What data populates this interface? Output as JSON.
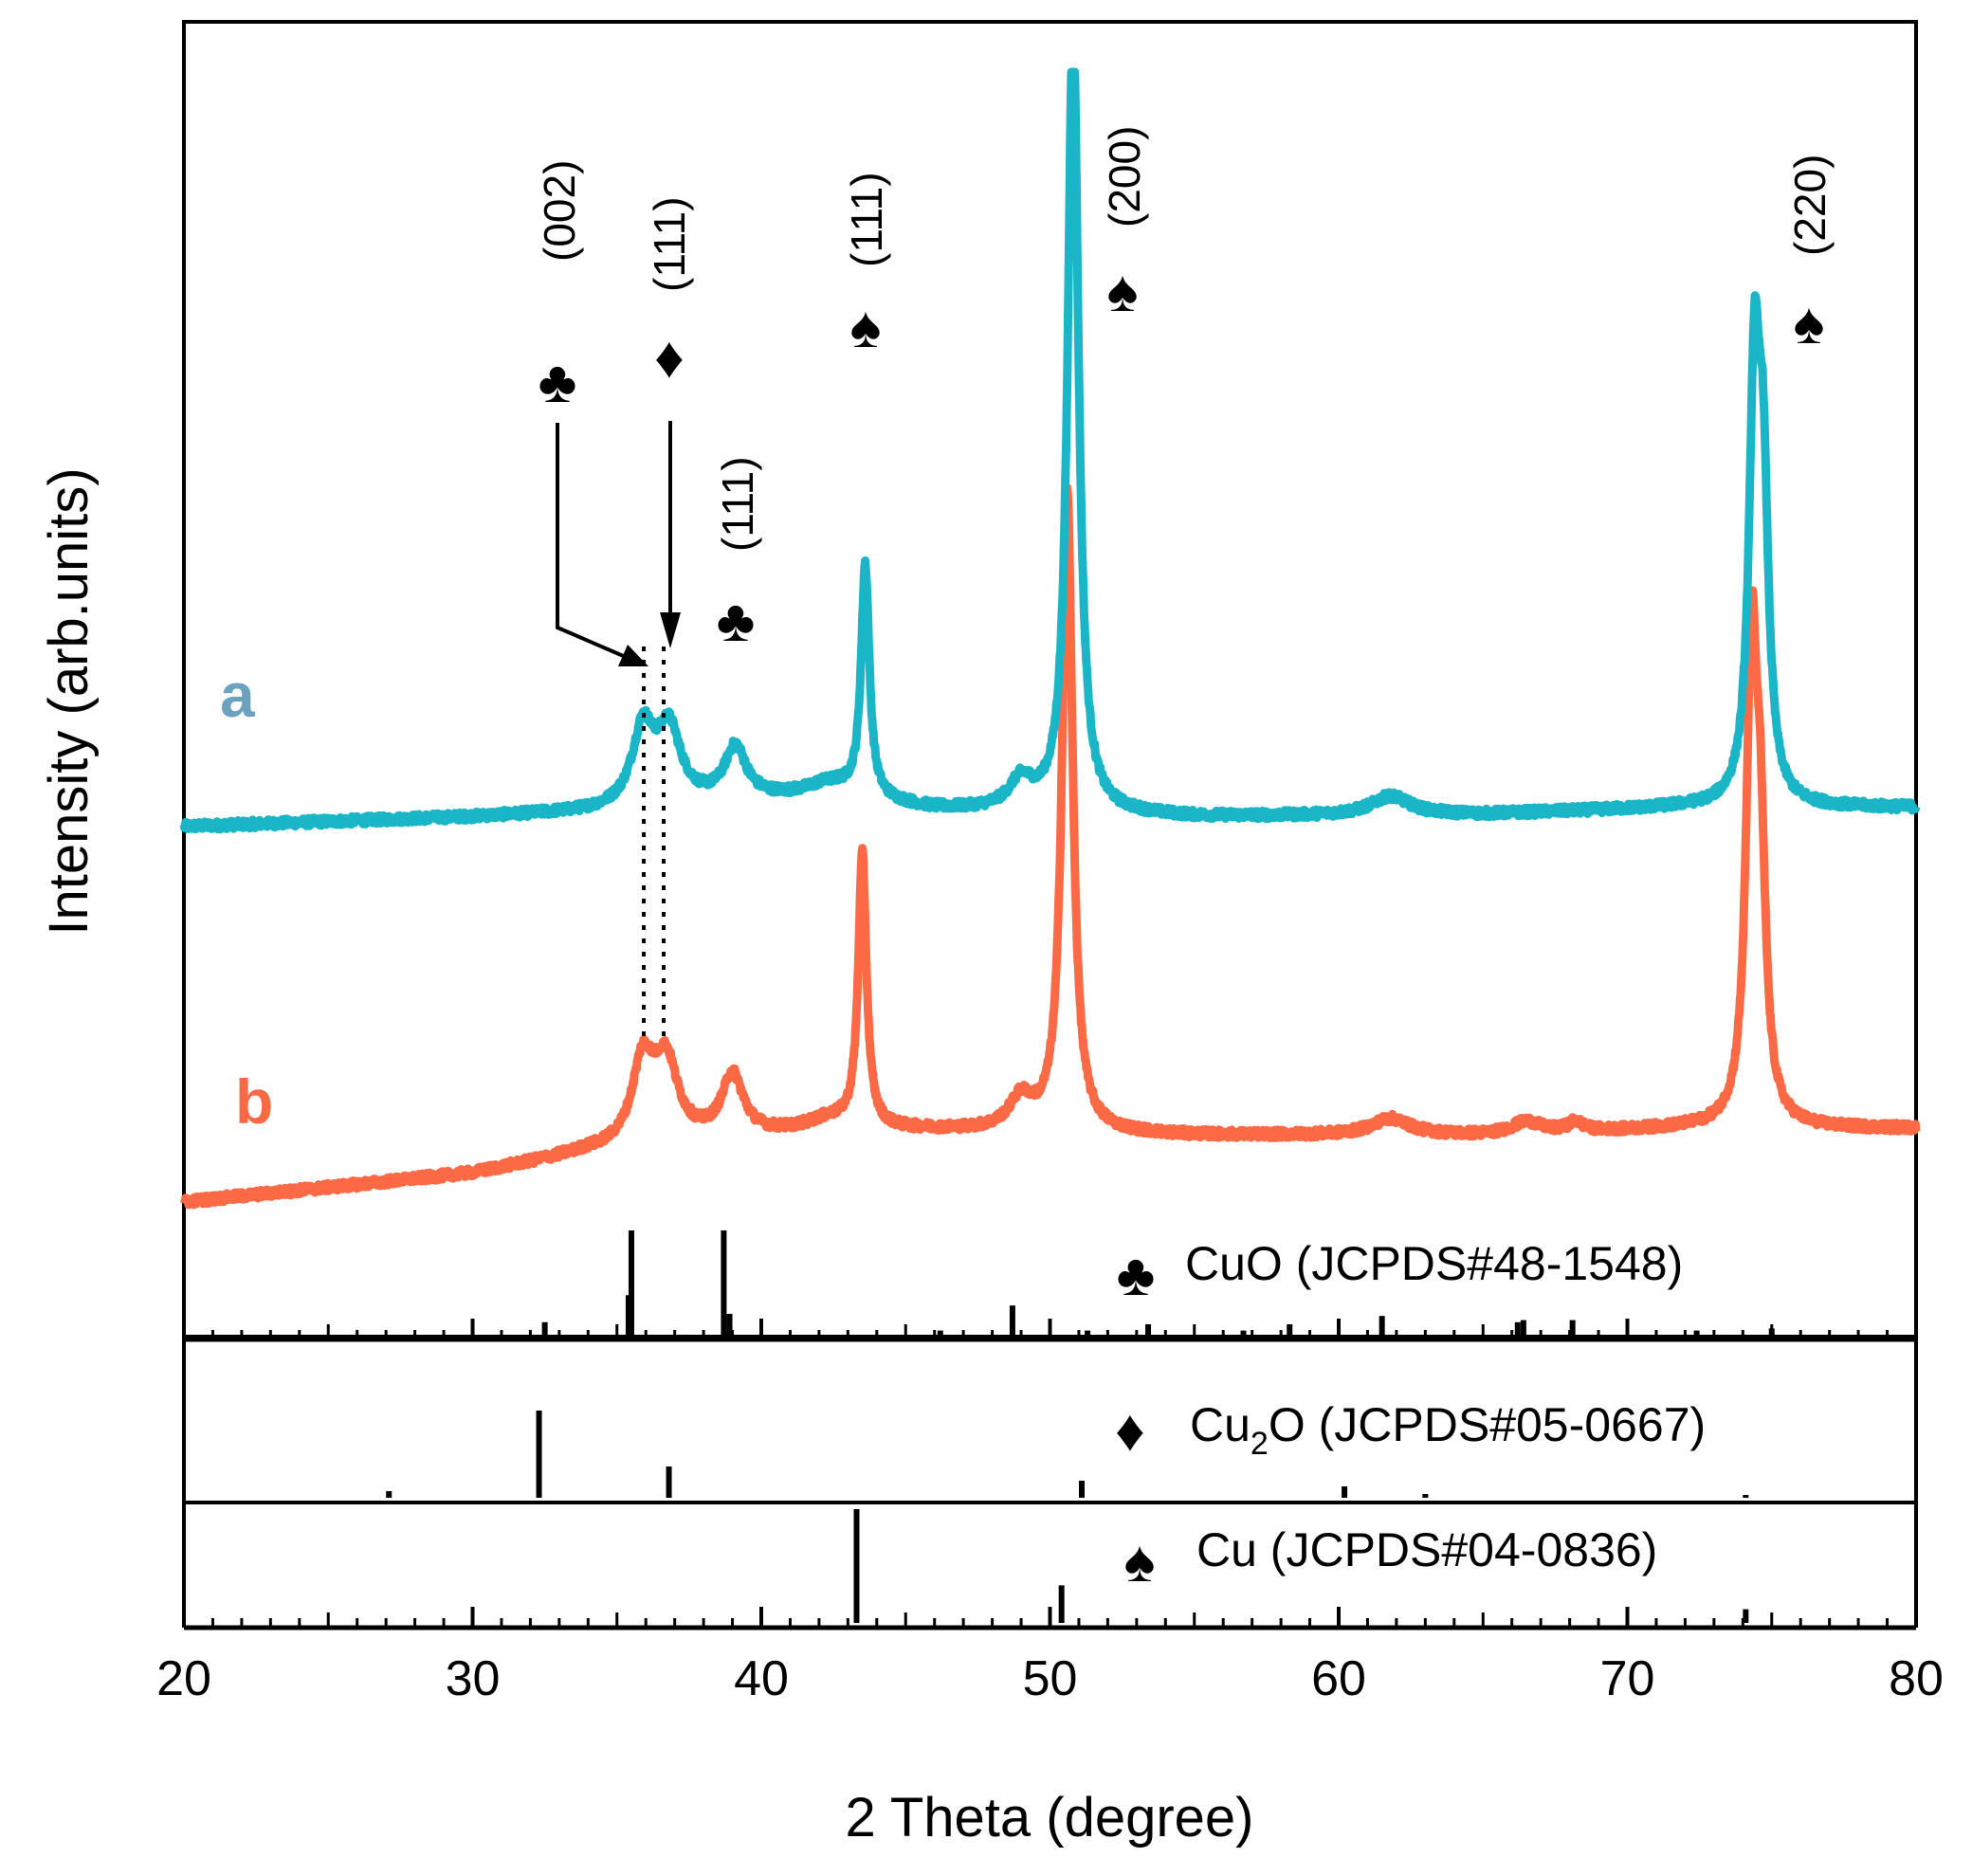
{
  "chart_data": {
    "type": "line",
    "xlabel": "2 Theta (degree)",
    "ylabel": "Intensity (arb.units)",
    "xlim": [
      20,
      80
    ],
    "xticks": [
      "20",
      "30",
      "40",
      "50",
      "60",
      "70",
      "80"
    ],
    "colors": {
      "a": "#1ab6c8",
      "b": "#fb6a45",
      "axis": "#000000"
    },
    "series": [
      {
        "name": "a",
        "color": "#1ab6c8",
        "baseline": [
          [
            20,
            0.04
          ],
          [
            30,
            0.08
          ],
          [
            34,
            0.1
          ],
          [
            42,
            0.17
          ],
          [
            46,
            0.11
          ],
          [
            55,
            0.08
          ],
          [
            65,
            0.09
          ],
          [
            72,
            0.12
          ],
          [
            80,
            0.12
          ]
        ],
        "peaks": [
          {
            "x": 35.9,
            "h": 0.32,
            "w": 0.45
          },
          {
            "x": 36.8,
            "h": 0.31,
            "w": 0.5
          },
          {
            "x": 39.1,
            "h": 0.22,
            "w": 0.45
          },
          {
            "x": 42.5,
            "h": 0.05,
            "w": 0.9
          },
          {
            "x": 43.6,
            "h": 0.98,
            "w": 0.17
          },
          {
            "x": 49.0,
            "h": 0.12,
            "w": 0.5
          },
          {
            "x": 50.8,
            "h": 3.4,
            "w": 0.22
          },
          {
            "x": 61.8,
            "h": 0.08,
            "w": 0.8
          },
          {
            "x": 74.4,
            "h": 1.7,
            "w": 0.22
          },
          {
            "x": 74.7,
            "h": 1.2,
            "w": 0.22
          }
        ]
      },
      {
        "name": "b",
        "color": "#fb6a45",
        "baseline": [
          [
            20,
            0.0
          ],
          [
            30,
            0.12
          ],
          [
            34,
            0.21
          ],
          [
            42,
            0.3
          ],
          [
            46,
            0.3
          ],
          [
            55,
            0.28
          ],
          [
            65,
            0.28
          ],
          [
            72,
            0.31
          ],
          [
            80,
            0.31
          ]
        ],
        "peaks": [
          {
            "x": 35.9,
            "h": 0.34,
            "w": 0.45
          },
          {
            "x": 36.7,
            "h": 0.33,
            "w": 0.5
          },
          {
            "x": 39.0,
            "h": 0.26,
            "w": 0.45
          },
          {
            "x": 42.4,
            "h": 0.04,
            "w": 0.9
          },
          {
            "x": 43.5,
            "h": 1.15,
            "w": 0.17
          },
          {
            "x": 49.0,
            "h": 0.13,
            "w": 0.5
          },
          {
            "x": 50.6,
            "h": 2.7,
            "w": 0.22
          },
          {
            "x": 61.8,
            "h": 0.07,
            "w": 0.8
          },
          {
            "x": 66.5,
            "h": 0.05,
            "w": 0.6
          },
          {
            "x": 68.2,
            "h": 0.04,
            "w": 0.3
          },
          {
            "x": 74.3,
            "h": 1.9,
            "w": 0.22
          },
          {
            "x": 74.6,
            "h": 1.0,
            "w": 0.22
          }
        ]
      }
    ],
    "reference_panels": [
      {
        "name": "CuO",
        "label": "CuO (JCPDS#48-1548)",
        "symbol": "♣",
        "lines": [
          [
            32.5,
            0.12
          ],
          [
            35.4,
            0.38
          ],
          [
            35.5,
            1.0
          ],
          [
            38.7,
            1.0
          ],
          [
            38.9,
            0.2
          ],
          [
            46.2,
            0.04
          ],
          [
            48.7,
            0.28
          ],
          [
            51.3,
            0.04
          ],
          [
            53.4,
            0.1
          ],
          [
            56.7,
            0.04
          ],
          [
            58.3,
            0.1
          ],
          [
            61.5,
            0.18
          ],
          [
            66.2,
            0.12
          ],
          [
            66.4,
            0.14
          ],
          [
            68.1,
            0.14
          ],
          [
            72.4,
            0.04
          ],
          [
            75.0,
            0.06
          ]
        ]
      },
      {
        "name": "Cu2O",
        "label_main": "Cu",
        "label_sub": "2",
        "label_rest": "O (JCPDS#05-0667)",
        "symbol": "♦",
        "lines": [
          [
            27.1,
            0.07
          ],
          [
            32.3,
            0.92
          ],
          [
            36.8,
            0.33
          ],
          [
            51.1,
            0.18
          ],
          [
            60.2,
            0.12
          ],
          [
            63.0,
            0.04
          ],
          [
            74.1,
            0.03
          ]
        ]
      },
      {
        "name": "Cu",
        "label": "Cu (JCPDS#04-0836)",
        "symbol": "♠",
        "lines": [
          [
            43.3,
            1.0
          ],
          [
            50.4,
            0.33
          ],
          [
            74.1,
            0.12
          ]
        ]
      }
    ],
    "series_labels": [
      "a",
      "b"
    ],
    "annotations": [
      {
        "symbol": "♣",
        "hkl": "(002)"
      },
      {
        "symbol": "♦",
        "hkl": "(111)"
      },
      {
        "symbol": "♣",
        "hkl": "(111)"
      },
      {
        "symbol": "♠",
        "hkl": "(111)"
      },
      {
        "symbol": "♠",
        "hkl": "(200)"
      },
      {
        "symbol": "♠",
        "hkl": "(220)"
      }
    ]
  }
}
